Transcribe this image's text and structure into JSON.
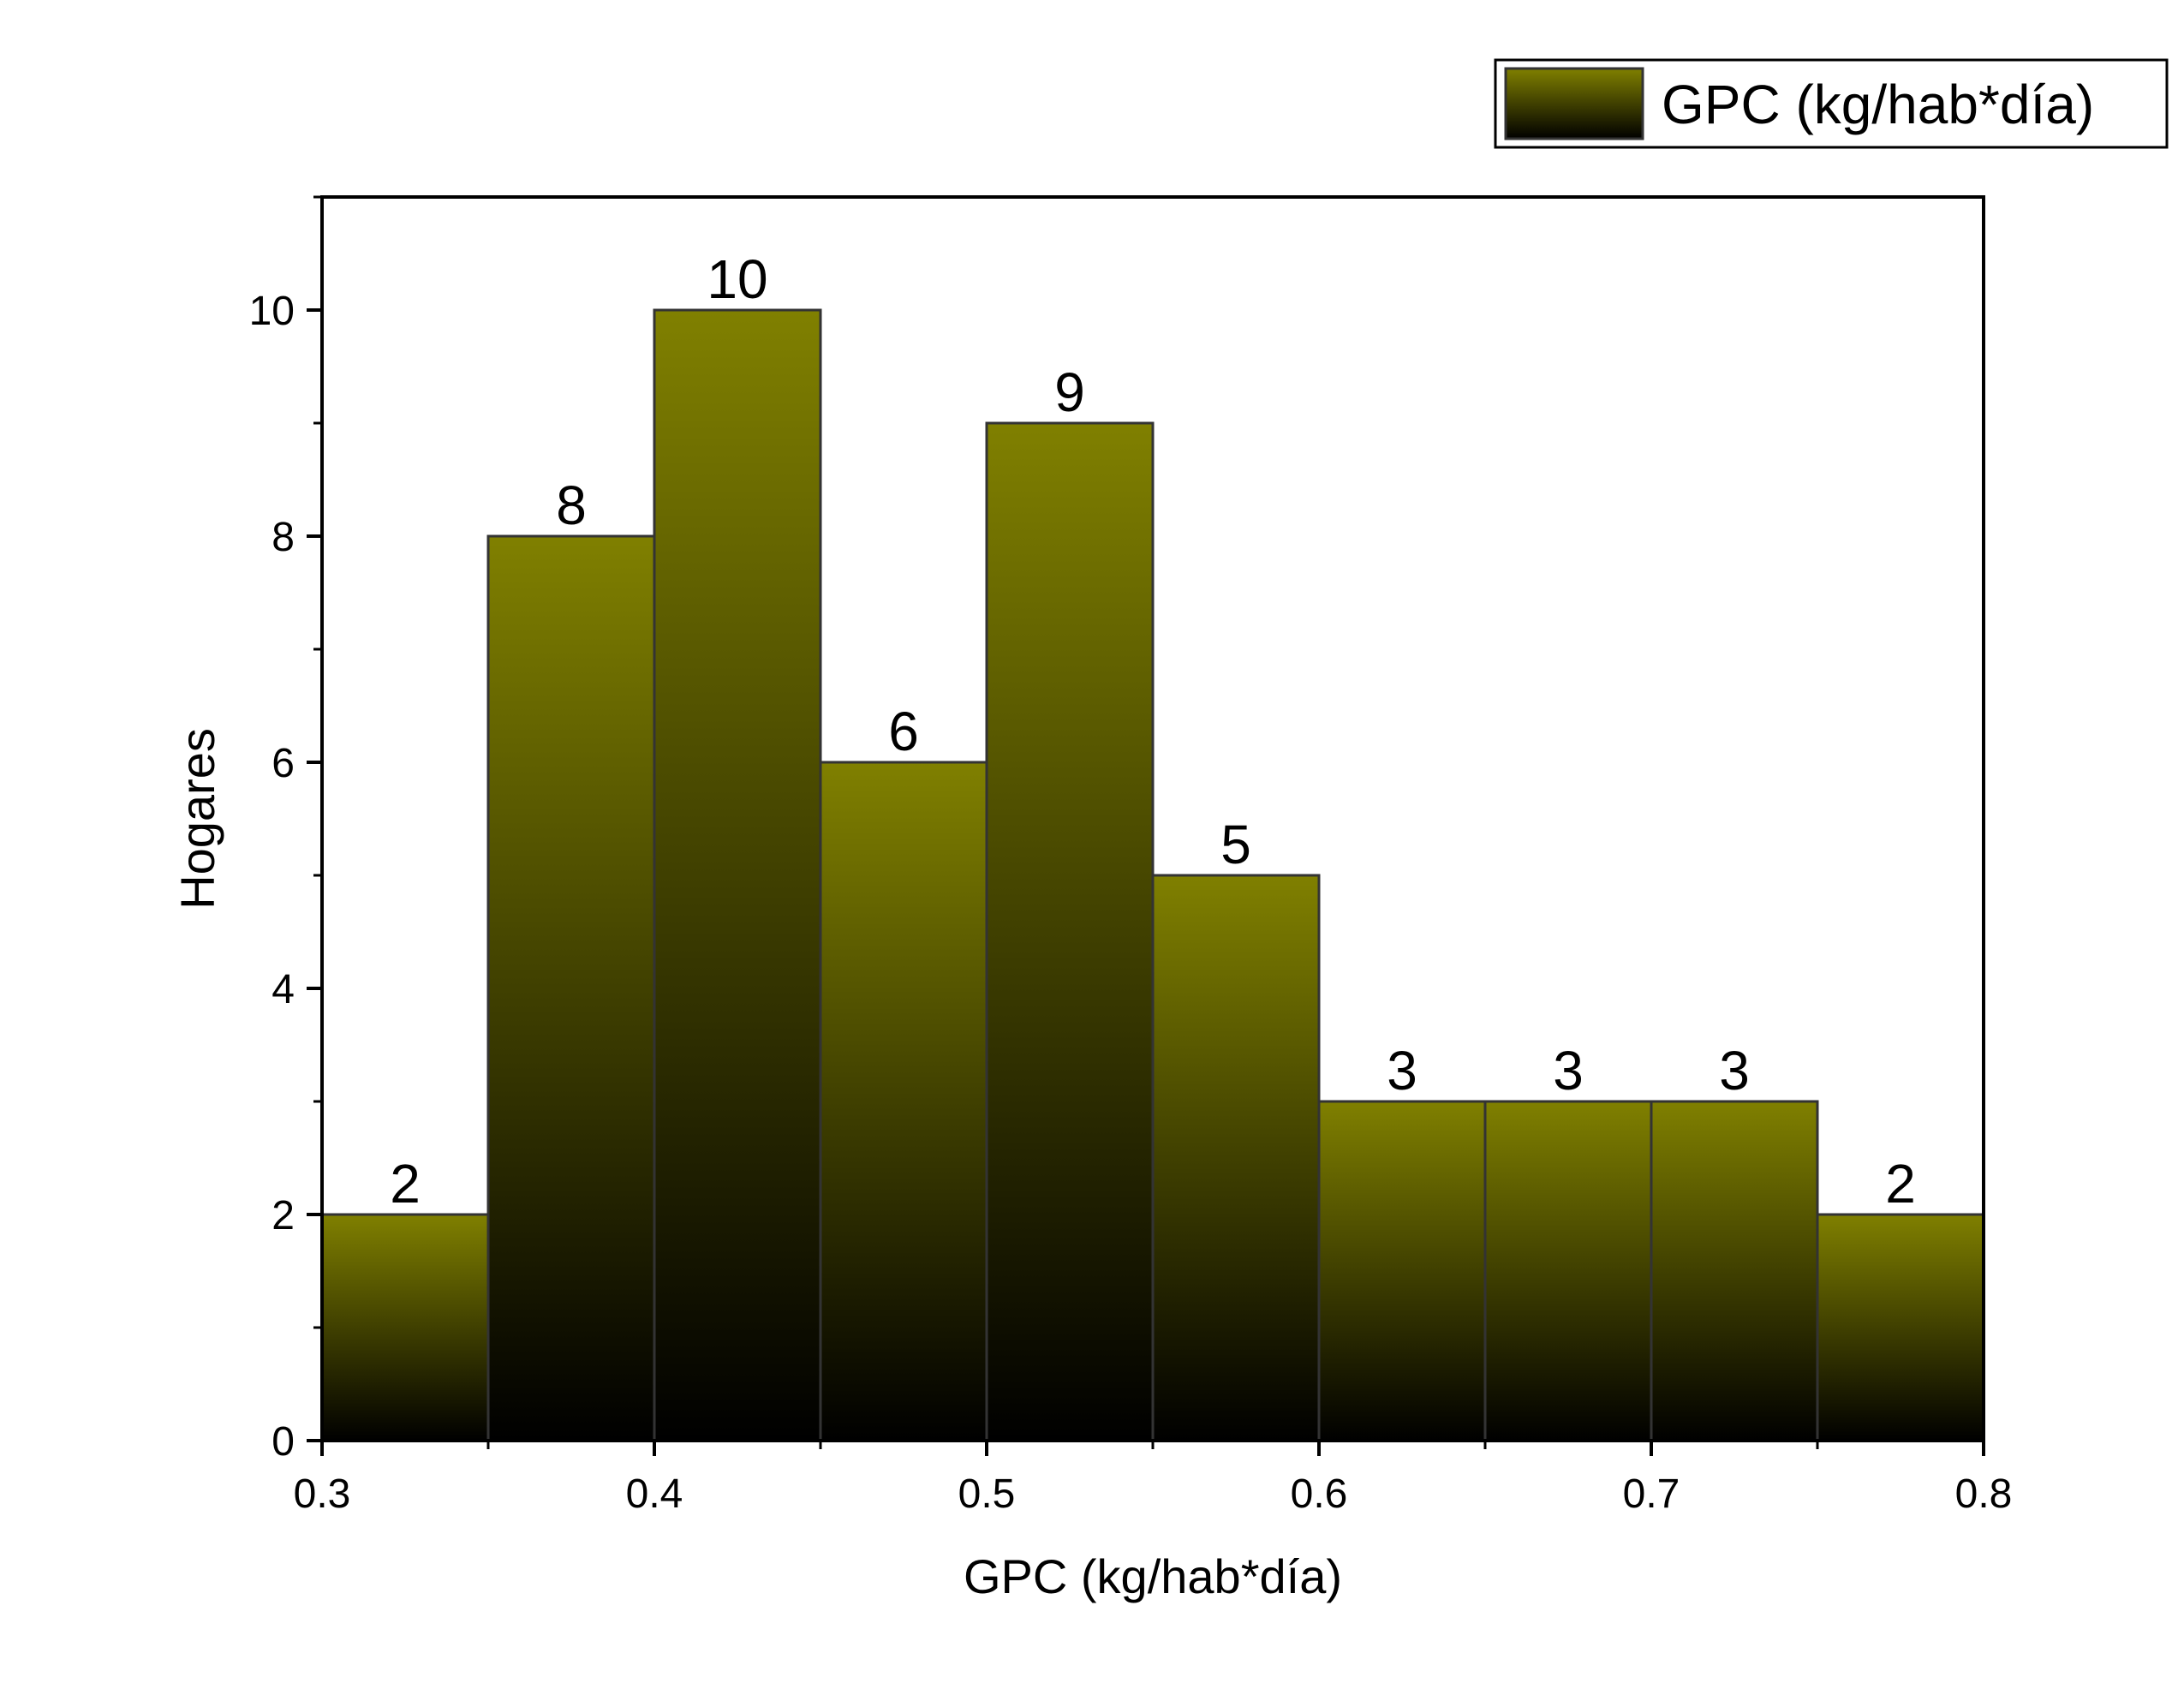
{
  "chart_data": {
    "type": "bar",
    "bins": [
      {
        "x0": 0.3,
        "x1": 0.35,
        "value": 2
      },
      {
        "x0": 0.35,
        "x1": 0.4,
        "value": 8
      },
      {
        "x0": 0.4,
        "x1": 0.45,
        "value": 10
      },
      {
        "x0": 0.45,
        "x1": 0.5,
        "value": 6
      },
      {
        "x0": 0.5,
        "x1": 0.55,
        "value": 9
      },
      {
        "x0": 0.55,
        "x1": 0.6,
        "value": 5
      },
      {
        "x0": 0.6,
        "x1": 0.65,
        "value": 3
      },
      {
        "x0": 0.65,
        "x1": 0.7,
        "value": 3
      },
      {
        "x0": 0.7,
        "x1": 0.75,
        "value": 3
      },
      {
        "x0": 0.75,
        "x1": 0.8,
        "value": 2
      }
    ],
    "data_labels": [
      "2",
      "8",
      "10",
      "6",
      "9",
      "5",
      "3",
      "3",
      "3",
      "2"
    ],
    "xlabel": "GPC (kg/hab*día)",
    "ylabel": "Hogares",
    "xlim": [
      0.3,
      0.8
    ],
    "ylim": [
      0,
      11
    ],
    "x_ticks": [
      0.3,
      0.4,
      0.5,
      0.6,
      0.7,
      0.8
    ],
    "x_tick_labels": [
      "0.3",
      "0.4",
      "0.5",
      "0.6",
      "0.7",
      "0.8"
    ],
    "y_ticks": [
      0,
      2,
      4,
      6,
      8,
      10
    ],
    "y_tick_labels": [
      "0",
      "2",
      "4",
      "6",
      "8",
      "10"
    ],
    "legend": {
      "placement": "top-right",
      "entries": [
        "GPC (kg/hab*día)"
      ]
    },
    "grid": false,
    "colors": {
      "bar_top": "#808000",
      "bar_bottom": "#000000",
      "edge": "#333333"
    }
  }
}
